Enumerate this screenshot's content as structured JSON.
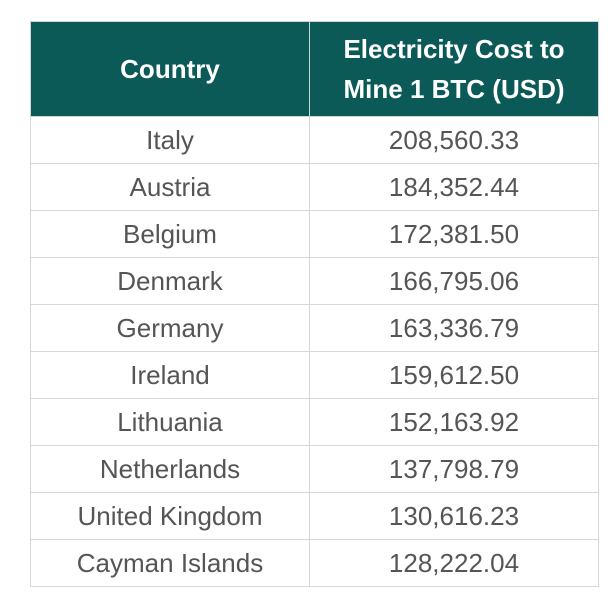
{
  "chart_data": {
    "type": "table",
    "columns": [
      "Country",
      "Electricity Cost to Mine 1 BTC (USD)"
    ],
    "rows": [
      {
        "country": "Italy",
        "cost": "208,560.33"
      },
      {
        "country": "Austria",
        "cost": "184,352.44"
      },
      {
        "country": "Belgium",
        "cost": "172,381.50"
      },
      {
        "country": "Denmark",
        "cost": "166,795.06"
      },
      {
        "country": "Germany",
        "cost": "163,336.79"
      },
      {
        "country": "Ireland",
        "cost": "159,612.50"
      },
      {
        "country": "Lithuania",
        "cost": "152,163.92"
      },
      {
        "country": "Netherlands",
        "cost": "137,798.79"
      },
      {
        "country": "United Kingdom",
        "cost": "130,616.23"
      },
      {
        "country": "Cayman Islands",
        "cost": "128,222.04"
      }
    ]
  },
  "colors": {
    "header_background": "#0b5a58",
    "header_text": "#ffffff",
    "cell_text": "#555555",
    "border": "#d7d7d7"
  }
}
